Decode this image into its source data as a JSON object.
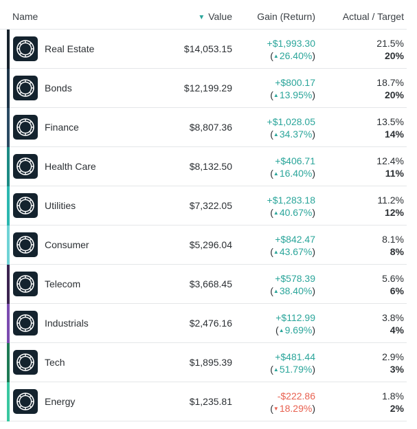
{
  "header": {
    "name_label": "Name",
    "value_label": "Value",
    "value_sort_icon": "triangle-down",
    "gain_label": "Gain (Return)",
    "target_label": "Actual / Target"
  },
  "colors": {
    "positive": "#2aa59a",
    "negative": "#e8604f",
    "logo_bg": "#14232e"
  },
  "rows": [
    {
      "name": "Real Estate",
      "value": "$14,053.15",
      "gain": "+$1,993.30",
      "ret": "26.40%",
      "dir": "up",
      "actual": "21.5%",
      "target": "20%",
      "bar_color": "#17222c"
    },
    {
      "name": "Bonds",
      "value": "$12,199.29",
      "gain": "+$800.17",
      "ret": "13.95%",
      "dir": "up",
      "actual": "18.7%",
      "target": "20%",
      "bar_color": "#1d3448"
    },
    {
      "name": "Finance",
      "value": "$8,807.36",
      "gain": "+$1,028.05",
      "ret": "34.37%",
      "dir": "up",
      "actual": "13.5%",
      "target": "14%",
      "bar_color": "#2a4a63"
    },
    {
      "name": "Health Care",
      "value": "$8,132.50",
      "gain": "+$406.71",
      "ret": "16.40%",
      "dir": "up",
      "actual": "12.4%",
      "target": "11%",
      "bar_color": "#1c8a84"
    },
    {
      "name": "Utilities",
      "value": "$7,322.05",
      "gain": "+$1,283.18",
      "ret": "40.67%",
      "dir": "up",
      "actual": "11.2%",
      "target": "12%",
      "bar_color": "#2bb7b0"
    },
    {
      "name": "Consumer",
      "value": "$5,296.04",
      "gain": "+$842.47",
      "ret": "43.67%",
      "dir": "up",
      "actual": "8.1%",
      "target": "8%",
      "bar_color": "#6fd3d6"
    },
    {
      "name": "Telecom",
      "value": "$3,668.45",
      "gain": "+$578.39",
      "ret": "38.40%",
      "dir": "up",
      "actual": "5.6%",
      "target": "6%",
      "bar_color": "#3b2450"
    },
    {
      "name": "Industrials",
      "value": "$2,476.16",
      "gain": "+$112.99",
      "ret": "9.69%",
      "dir": "up",
      "actual": "3.8%",
      "target": "4%",
      "bar_color": "#7b4bb0"
    },
    {
      "name": "Tech",
      "value": "$1,895.39",
      "gain": "+$481.44",
      "ret": "51.79%",
      "dir": "up",
      "actual": "2.9%",
      "target": "3%",
      "bar_color": "#1e7a55"
    },
    {
      "name": "Energy",
      "value": "$1,235.81",
      "gain": "-$222.86",
      "ret": "18.29%",
      "dir": "down",
      "actual": "1.8%",
      "target": "2%",
      "bar_color": "#38c7a0"
    }
  ]
}
